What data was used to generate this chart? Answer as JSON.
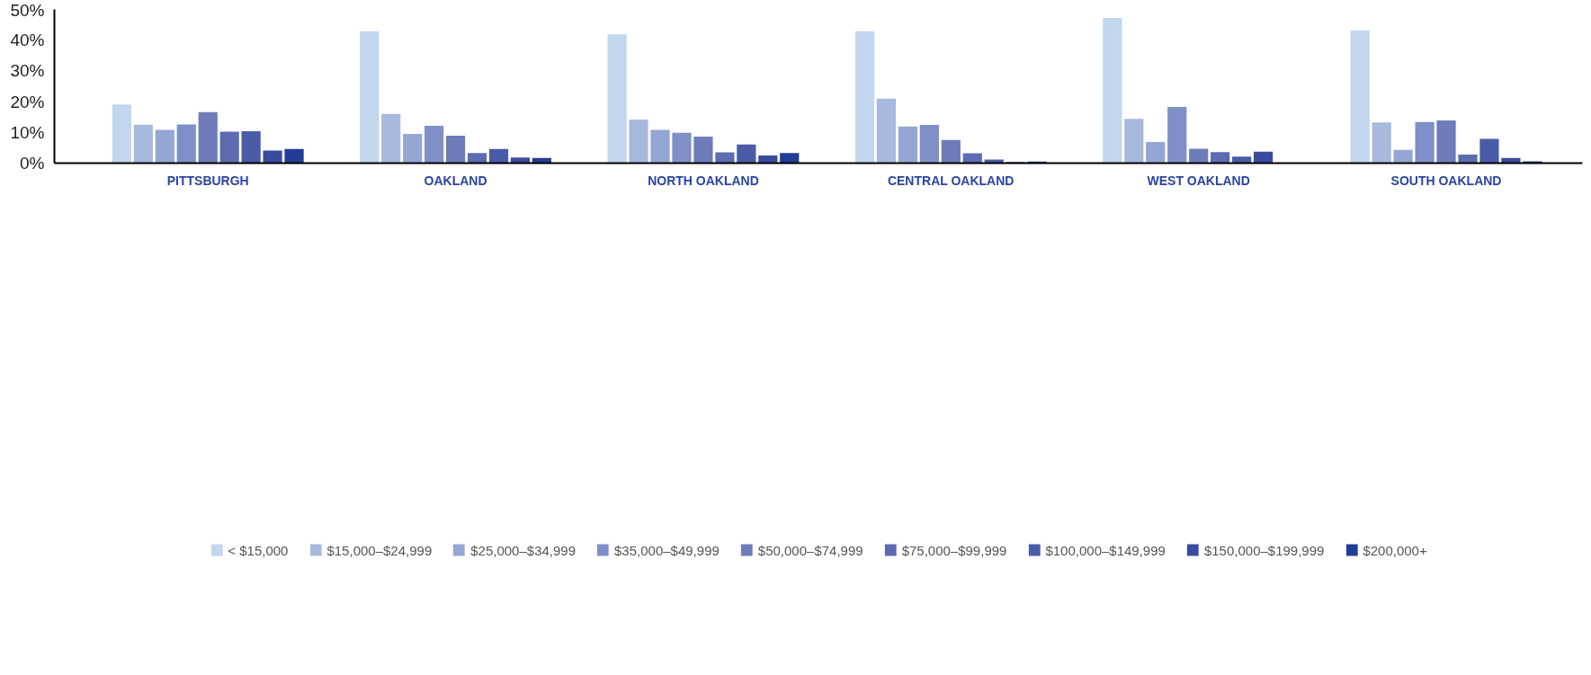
{
  "chart_data": {
    "type": "bar",
    "categories": [
      "PITTSBURGH",
      "OAKLAND",
      "NORTH OAKLAND",
      "CENTRAL OAKLAND",
      "WEST OAKLAND",
      "SOUTH OAKLAND"
    ],
    "ylim": [
      0,
      50
    ],
    "yticks": [
      {
        "value": 0,
        "label": "0%"
      },
      {
        "value": 10,
        "label": "10%"
      },
      {
        "value": 20,
        "label": "20%"
      },
      {
        "value": 30,
        "label": "30%"
      },
      {
        "value": 40,
        "label": "40%"
      },
      {
        "value": 50,
        "label": "50%"
      }
    ],
    "grid": false,
    "legend": "bottom",
    "series": [
      {
        "name": "< $15,000",
        "color": "#c2d6ee",
        "values": [
          19.1,
          42.9,
          41.9,
          42.9,
          47.2,
          43.2
        ]
      },
      {
        "name": "$15,000–$24,999",
        "color": "#a8b9de",
        "values": [
          12.5,
          16.0,
          14.2,
          21.0,
          14.4,
          13.2
        ]
      },
      {
        "name": "$25,000–$34,999",
        "color": "#94a6d4",
        "values": [
          10.8,
          9.5,
          10.8,
          11.9,
          6.9,
          4.3
        ]
      },
      {
        "name": "$35,000–$49,999",
        "color": "#7f8fc8",
        "values": [
          12.6,
          12.1,
          9.9,
          12.4,
          18.3,
          13.4
        ]
      },
      {
        "name": "$50,000–$74,999",
        "color": "#6e7cba",
        "values": [
          16.6,
          8.9,
          8.6,
          7.5,
          4.7,
          13.9
        ]
      },
      {
        "name": "$75,000–$99,999",
        "color": "#5d6bb1",
        "values": [
          10.2,
          3.3,
          3.5,
          3.2,
          3.6,
          2.8
        ]
      },
      {
        "name": "$100,000–$149,999",
        "color": "#4a5ba8",
        "values": [
          10.4,
          4.6,
          6.1,
          1.2,
          2.1,
          7.9
        ]
      },
      {
        "name": "$150,000–$199,999",
        "color": "#3a4b9f",
        "values": [
          4.1,
          1.8,
          2.5,
          0.4,
          3.7,
          1.7
        ]
      },
      {
        "name": "$200,000+",
        "color": "#233d96",
        "values": [
          4.6,
          1.7,
          3.3,
          0.5,
          0,
          0.6
        ]
      }
    ]
  }
}
